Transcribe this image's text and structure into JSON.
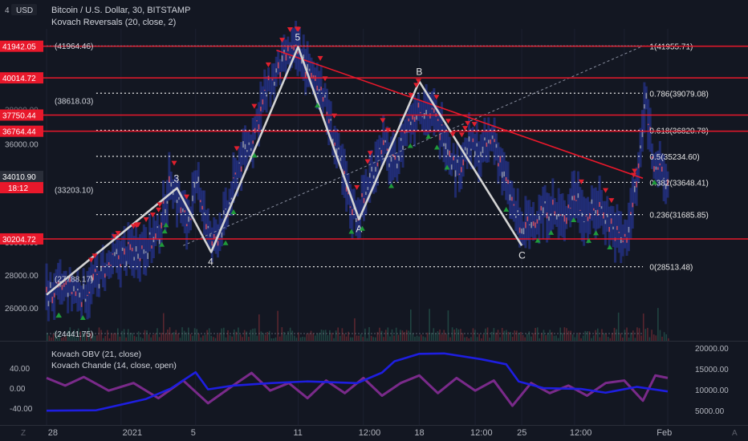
{
  "header": {
    "currency_badge": "USD",
    "title": "Bitcoin / U.S. Dollar, 30, BITSTAMP",
    "indicator": "Kovach Reversals (20, close, 2)"
  },
  "colors": {
    "background": "#131722",
    "red_line": "#e8182b",
    "wave_line": "#d4d4d4",
    "candle_up": "#c44a5a",
    "candle_band": "#2a3aa8",
    "obv_line": "#1e1ee0",
    "chande_line": "#7a2a8a",
    "up_marker": "#1f9a3a",
    "down_marker": "#e0202e",
    "fib_line": "#e6e6e6"
  },
  "price_axis": {
    "left_labels": [
      "26000.00",
      "28000.00",
      "30000.00",
      "36000.00"
    ],
    "left_partial": "4",
    "red_level_labels": [
      "41942.05",
      "40014.72",
      "37750.44",
      "36764.44",
      "34010.90",
      "30204.72"
    ],
    "countdown": "18:12",
    "partial_label": "38000.00"
  },
  "chart_data": [
    {
      "type": "line",
      "title": "Bitcoin / U.S. Dollar, 30, BITSTAMP",
      "ylim": [
        24000,
        43000
      ],
      "xlabels": [
        "28",
        "2021",
        "5",
        "11",
        "12:00",
        "18",
        "12:00",
        "25",
        "12:00",
        "Feb"
      ],
      "horizontal_red_levels": [
        41942.05,
        40014.72,
        37750.44,
        36764.44,
        30204.72
      ],
      "fib_levels": [
        {
          "label": "1(41955.71)",
          "value": 41955.71
        },
        {
          "label": "0.786(39079.08)",
          "value": 39079.08
        },
        {
          "label": "0.618(36820.78)",
          "value": 36820.78
        },
        {
          "label": "0.5(35234.60)",
          "value": 35234.6
        },
        {
          "label": "0.382(33648.41)",
          "value": 33648.41
        },
        {
          "label": "0.236(31685.85)",
          "value": 31685.85
        },
        {
          "label": "0(28513.48)",
          "value": 28513.48
        }
      ],
      "left_level_labels": [
        {
          "label": "(41964.46)",
          "value": 41964.46
        },
        {
          "label": "(38618.03)",
          "value": 38618.03
        },
        {
          "label": "(33203.10)",
          "value": 33203.1
        },
        {
          "label": "(27788.17)",
          "value": 27788.17
        },
        {
          "label": "(24441.75)",
          "value": 24441.75
        }
      ],
      "wave_points": [
        {
          "label": "",
          "x": 0.0,
          "y": 26800
        },
        {
          "label": "3",
          "x": 0.21,
          "y": 33300
        },
        {
          "label": "4",
          "x": 0.265,
          "y": 29400
        },
        {
          "label": "5",
          "x": 0.405,
          "y": 41900
        },
        {
          "label": "A",
          "x": 0.503,
          "y": 31400
        },
        {
          "label": "B",
          "x": 0.6,
          "y": 39800
        },
        {
          "label": "C",
          "x": 0.765,
          "y": 29800
        }
      ],
      "trendline": {
        "x1": 0.37,
        "y1": 41700,
        "x2": 0.96,
        "y2": 33900
      },
      "price_path": [
        [
          0.0,
          26800
        ],
        [
          0.03,
          27200
        ],
        [
          0.06,
          26900
        ],
        [
          0.09,
          28200
        ],
        [
          0.12,
          29200
        ],
        [
          0.15,
          29600
        ],
        [
          0.18,
          30400
        ],
        [
          0.2,
          33900
        ],
        [
          0.225,
          31200
        ],
        [
          0.245,
          33600
        ],
        [
          0.265,
          29800
        ],
        [
          0.29,
          31600
        ],
        [
          0.31,
          34800
        ],
        [
          0.33,
          36200
        ],
        [
          0.35,
          38800
        ],
        [
          0.375,
          40600
        ],
        [
          0.395,
          41600
        ],
        [
          0.41,
          41400
        ],
        [
          0.425,
          40000
        ],
        [
          0.44,
          39800
        ],
        [
          0.455,
          37400
        ],
        [
          0.47,
          35200
        ],
        [
          0.49,
          32200
        ],
        [
          0.503,
          31700
        ],
        [
          0.52,
          33800
        ],
        [
          0.54,
          36000
        ],
        [
          0.56,
          34600
        ],
        [
          0.58,
          37000
        ],
        [
          0.6,
          38400
        ],
        [
          0.62,
          37800
        ],
        [
          0.64,
          36600
        ],
        [
          0.66,
          34400
        ],
        [
          0.68,
          35900
        ],
        [
          0.7,
          35400
        ],
        [
          0.72,
          36400
        ],
        [
          0.74,
          33500
        ],
        [
          0.765,
          30600
        ],
        [
          0.79,
          31600
        ],
        [
          0.81,
          32200
        ],
        [
          0.83,
          31300
        ],
        [
          0.85,
          33000
        ],
        [
          0.87,
          31500
        ],
        [
          0.89,
          32300
        ],
        [
          0.91,
          31000
        ],
        [
          0.93,
          30000
        ],
        [
          0.95,
          33400
        ],
        [
          0.965,
          38900
        ],
        [
          0.975,
          35500
        ],
        [
          0.99,
          34100
        ],
        [
          1.0,
          33500
        ]
      ]
    },
    {
      "type": "line",
      "series": [
        {
          "name": "Kovach OBV (21, close)"
        },
        {
          "name": "Kovach Chande (14, close, open)"
        }
      ],
      "y_left": [
        "40.00",
        "0.00",
        "-40.00"
      ],
      "y_right": [
        "20000.00",
        "15000.00",
        "10000.00",
        "5000.00"
      ],
      "obv_path": [
        [
          0.0,
          5000
        ],
        [
          0.08,
          5100
        ],
        [
          0.16,
          7800
        ],
        [
          0.2,
          10300
        ],
        [
          0.24,
          14200
        ],
        [
          0.26,
          10100
        ],
        [
          0.3,
          11000
        ],
        [
          0.36,
          11600
        ],
        [
          0.42,
          12000
        ],
        [
          0.5,
          11600
        ],
        [
          0.54,
          14100
        ],
        [
          0.56,
          16800
        ],
        [
          0.6,
          18600
        ],
        [
          0.64,
          18700
        ],
        [
          0.7,
          17300
        ],
        [
          0.74,
          16100
        ],
        [
          0.76,
          12000
        ],
        [
          0.8,
          10400
        ],
        [
          0.86,
          10200
        ],
        [
          0.9,
          9300
        ],
        [
          0.95,
          10700
        ],
        [
          1.0,
          9600
        ]
      ],
      "chande_path": [
        [
          0.0,
          20
        ],
        [
          0.03,
          5
        ],
        [
          0.06,
          22
        ],
        [
          0.1,
          -5
        ],
        [
          0.14,
          10
        ],
        [
          0.18,
          -20
        ],
        [
          0.22,
          15
        ],
        [
          0.26,
          -30
        ],
        [
          0.3,
          5
        ],
        [
          0.33,
          30
        ],
        [
          0.36,
          -5
        ],
        [
          0.39,
          10
        ],
        [
          0.42,
          -20
        ],
        [
          0.45,
          15
        ],
        [
          0.48,
          -10
        ],
        [
          0.51,
          20
        ],
        [
          0.54,
          -15
        ],
        [
          0.57,
          10
        ],
        [
          0.6,
          25
        ],
        [
          0.63,
          -10
        ],
        [
          0.66,
          20
        ],
        [
          0.69,
          -5
        ],
        [
          0.72,
          15
        ],
        [
          0.75,
          -35
        ],
        [
          0.78,
          10
        ],
        [
          0.81,
          -10
        ],
        [
          0.84,
          5
        ],
        [
          0.87,
          -15
        ],
        [
          0.9,
          10
        ],
        [
          0.93,
          15
        ],
        [
          0.96,
          -25
        ],
        [
          0.98,
          25
        ],
        [
          1.0,
          20
        ]
      ]
    }
  ],
  "footer": {
    "left_icon_text": "Z",
    "right_icon_text": "A"
  }
}
